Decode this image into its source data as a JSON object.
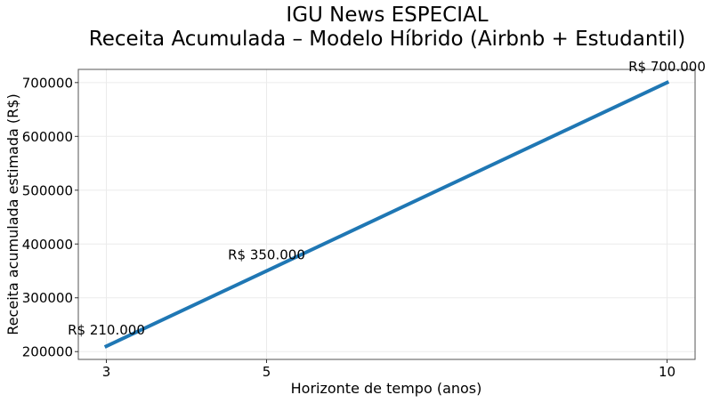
{
  "chart_data": {
    "type": "line",
    "title": "IGU News ESPECIAL",
    "subtitle": "Receita Acumulada – Modelo Híbrido (Airbnb + Estudantil)",
    "xlabel": "Horizonte de tempo (anos)",
    "ylabel": "Receita acumulada estimada (R$)",
    "x": [
      3,
      5,
      10
    ],
    "series": [
      {
        "values": [
          210000,
          350000,
          700000
        ],
        "color": "#1f77b4"
      }
    ],
    "annotations": [
      "R$ 210.000",
      "R$ 350.000",
      "R$ 700.000"
    ],
    "xticks": [
      3,
      5,
      10
    ],
    "xtick_labels": [
      "3",
      "5",
      "10"
    ],
    "yticks": [
      200000,
      300000,
      400000,
      500000,
      600000,
      700000
    ],
    "ytick_labels": [
      "200000",
      "300000",
      "400000",
      "500000",
      "600000",
      "700000"
    ],
    "xlim": [
      2.65,
      10.35
    ],
    "ylim": [
      185500,
      724500
    ],
    "grid": true
  }
}
